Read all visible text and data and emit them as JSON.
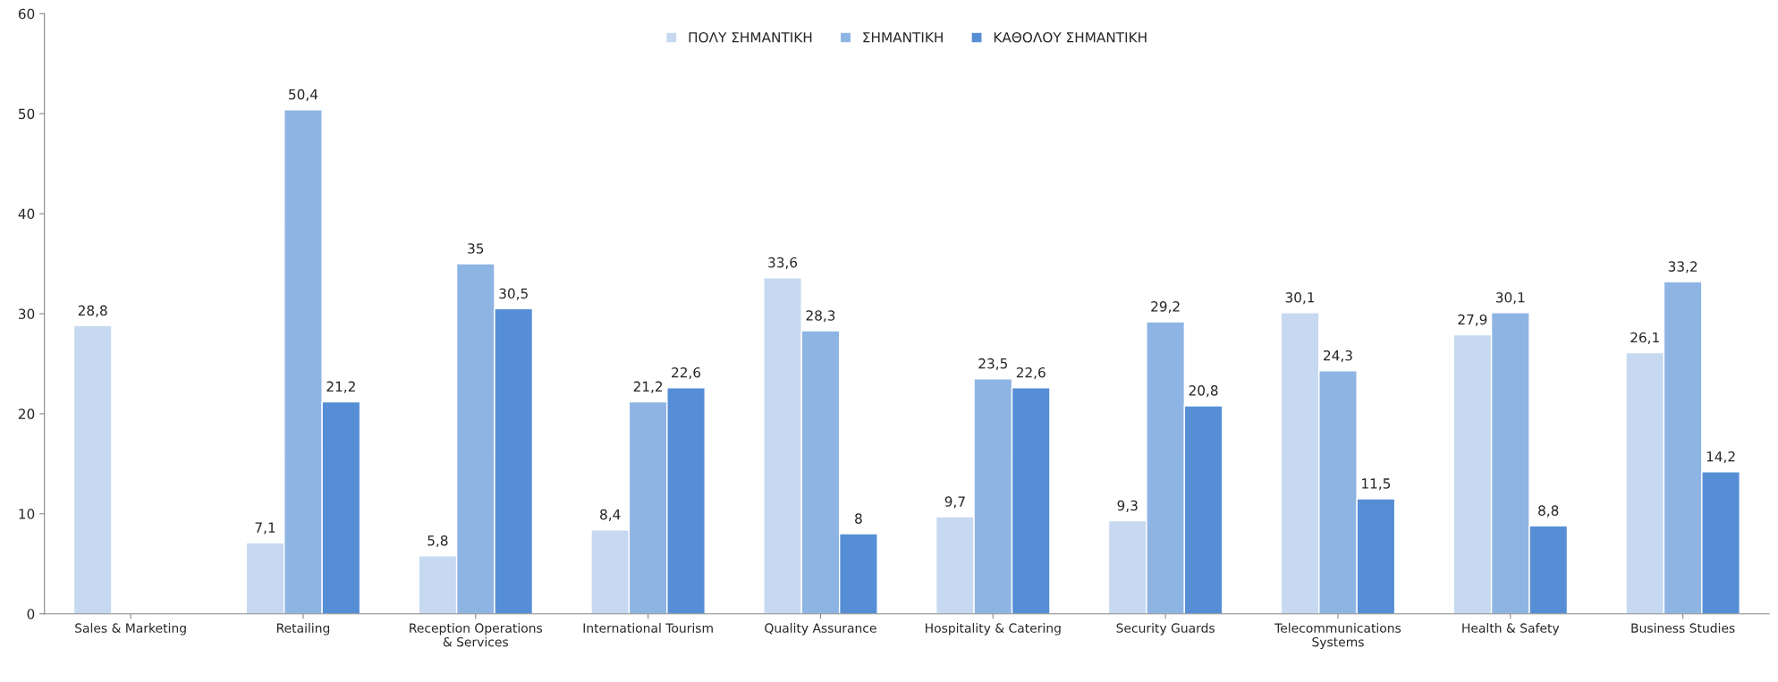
{
  "chart_data": {
    "type": "bar",
    "categories": [
      "Sales & Marketing",
      "Retailing",
      "Reception Operations & Services",
      "International Tourism",
      "Quality Assurance",
      "Hospitality & Catering",
      "Security Guards",
      "Telecommunications Systems",
      "Health & Safety",
      "Business Studies"
    ],
    "series": [
      {
        "name": "ΠΟΛΥ ΣΗΜΑΝΤΙΚΗ",
        "color": "#c6d9f1",
        "values": [
          28.8,
          7.1,
          5.8,
          8.4,
          33.6,
          9.7,
          9.3,
          30.1,
          27.9,
          26.1
        ],
        "value_labels": [
          "28,8",
          "7,1",
          "5,8",
          "8,4",
          "33,6",
          "9,7",
          "9,3",
          "30,1",
          "27,9",
          "26,1"
        ]
      },
      {
        "name": "ΣΗΜΑΝΤΙΚΗ",
        "color": "#8eb4e3",
        "values": [
          null,
          50.4,
          35,
          21.2,
          28.3,
          23.5,
          29.2,
          24.3,
          30.1,
          33.2
        ],
        "value_labels": [
          null,
          "50,4",
          "35",
          "21,2",
          "28,3",
          "23,5",
          "29,2",
          "24,3",
          "30,1",
          "33,2"
        ]
      },
      {
        "name": "ΚΑΘΟΛΟΥ ΣΗΜΑΝΤΙΚΗ",
        "color": "#558ed5",
        "values": [
          null,
          21.2,
          30.5,
          22.6,
          8,
          22.6,
          20.8,
          11.5,
          8.8,
          14.2
        ],
        "value_labels": [
          null,
          "21,2",
          "30,5",
          "22,6",
          "8",
          "22,6",
          "20,8",
          "11,5",
          "8,8",
          "14,2"
        ]
      }
    ],
    "ylim": [
      0,
      60
    ],
    "yticks": [
      0,
      10,
      20,
      30,
      40,
      50,
      60
    ],
    "grid": false,
    "legend": "top"
  }
}
